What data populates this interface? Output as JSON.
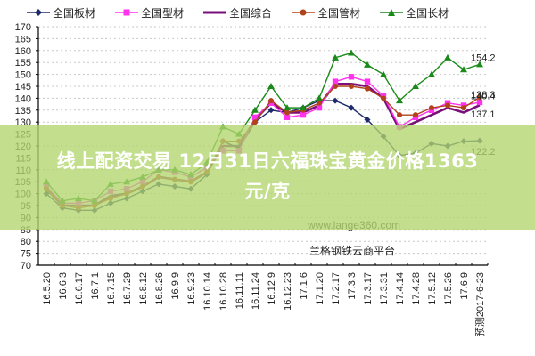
{
  "legend": {
    "items": [
      {
        "label": "全国板材",
        "color": "#1f2a6b",
        "marker": "diamond"
      },
      {
        "label": "全国型材",
        "color": "#ff33ee",
        "marker": "square"
      },
      {
        "label": "全国综合",
        "color": "#7a0f7a",
        "marker": "none"
      },
      {
        "label": "全国管材",
        "color": "#b0431a",
        "marker": "circle"
      },
      {
        "label": "全国长材",
        "color": "#1a8a1a",
        "marker": "triangle"
      }
    ]
  },
  "overlay": {
    "title_line1": "线上配资交易 12月31日六福珠宝黄金价格1363",
    "title_line2": "元/克"
  },
  "watermark": {
    "url": "www.lange360.com",
    "name": "兰格钢铁云商平台"
  },
  "chart_data": {
    "type": "line",
    "title": "",
    "xlabel": "",
    "ylabel": "",
    "ylim": [
      70,
      170
    ],
    "yticks": [
      70,
      75,
      80,
      85,
      90,
      95,
      100,
      105,
      110,
      115,
      120,
      125,
      130,
      135,
      140,
      145,
      150,
      155,
      160,
      165,
      170
    ],
    "grid": "horizontal dotted",
    "legend_position": "top",
    "categories": [
      "16.5.20",
      "16.6.3",
      "16.6.17",
      "16.7.1",
      "16.7.15",
      "16.7.29",
      "16.8.12",
      "16.8.26",
      "16.9.9",
      "16.9.23",
      "16.10.14",
      "16.10.28",
      "16.11.11",
      "16.11.24",
      "16.12.9",
      "16.12.23",
      "17.1.6",
      "17.1.20",
      "17.2.17",
      "17.3.3",
      "17.3.17",
      "17.3.31",
      "17.4.14",
      "17.4.28",
      "17.5.12",
      "17.5.26",
      "17.6.9",
      "预测2017-6-23"
    ],
    "series": [
      {
        "name": "全国板材",
        "color": "#1f2a6b",
        "values": [
          100,
          94,
          93,
          93,
          96,
          98,
          101,
          104,
          103,
          102,
          108,
          122,
          119,
          130,
          135,
          134,
          136,
          139,
          139,
          136,
          131,
          124,
          116,
          117,
          121,
          120,
          122,
          122.2
        ]
      },
      {
        "name": "全国型材",
        "color": "#ff33ee",
        "values": [
          103,
          96,
          96,
          97,
          101,
          102,
          105,
          110,
          109,
          107,
          111,
          118,
          118,
          132,
          138,
          132,
          133,
          136,
          147,
          149,
          147,
          141,
          128,
          132,
          135,
          138,
          137,
          138.3
        ]
      },
      {
        "name": "全国综合",
        "color": "#7a0f7a",
        "values": [
          102,
          95,
          95,
          95,
          99,
          100,
          103,
          107,
          106,
          105,
          109,
          120,
          120,
          131,
          138,
          134,
          134,
          137,
          146,
          146,
          145,
          140,
          127,
          130,
          133,
          136,
          134,
          137.1
        ]
      },
      {
        "name": "全国管材",
        "color": "#b0431a",
        "values": [
          102,
          95,
          94,
          95,
          98,
          100,
          103,
          107,
          106,
          105,
          109,
          122,
          122,
          130,
          139,
          134,
          135,
          138,
          145,
          145,
          144,
          140,
          133,
          133,
          136,
          137,
          136,
          140.4
        ]
      },
      {
        "name": "全国长材",
        "color": "#1a8a1a",
        "values": [
          105,
          97,
          98,
          97,
          104,
          105,
          107,
          110,
          110,
          108,
          113,
          128,
          125,
          135,
          145,
          136,
          136,
          140,
          157,
          159,
          154,
          150,
          139,
          145,
          150,
          157,
          152,
          154.2
        ]
      }
    ],
    "annotations": [
      {
        "series": "全国长材",
        "text": "154.2"
      },
      {
        "series": "全国管材",
        "text": "140.4"
      },
      {
        "series": "全国型材",
        "text": "138.3"
      },
      {
        "series": "全国综合",
        "text": "137.1"
      },
      {
        "series": "全国板材",
        "text": "122.2"
      }
    ]
  }
}
